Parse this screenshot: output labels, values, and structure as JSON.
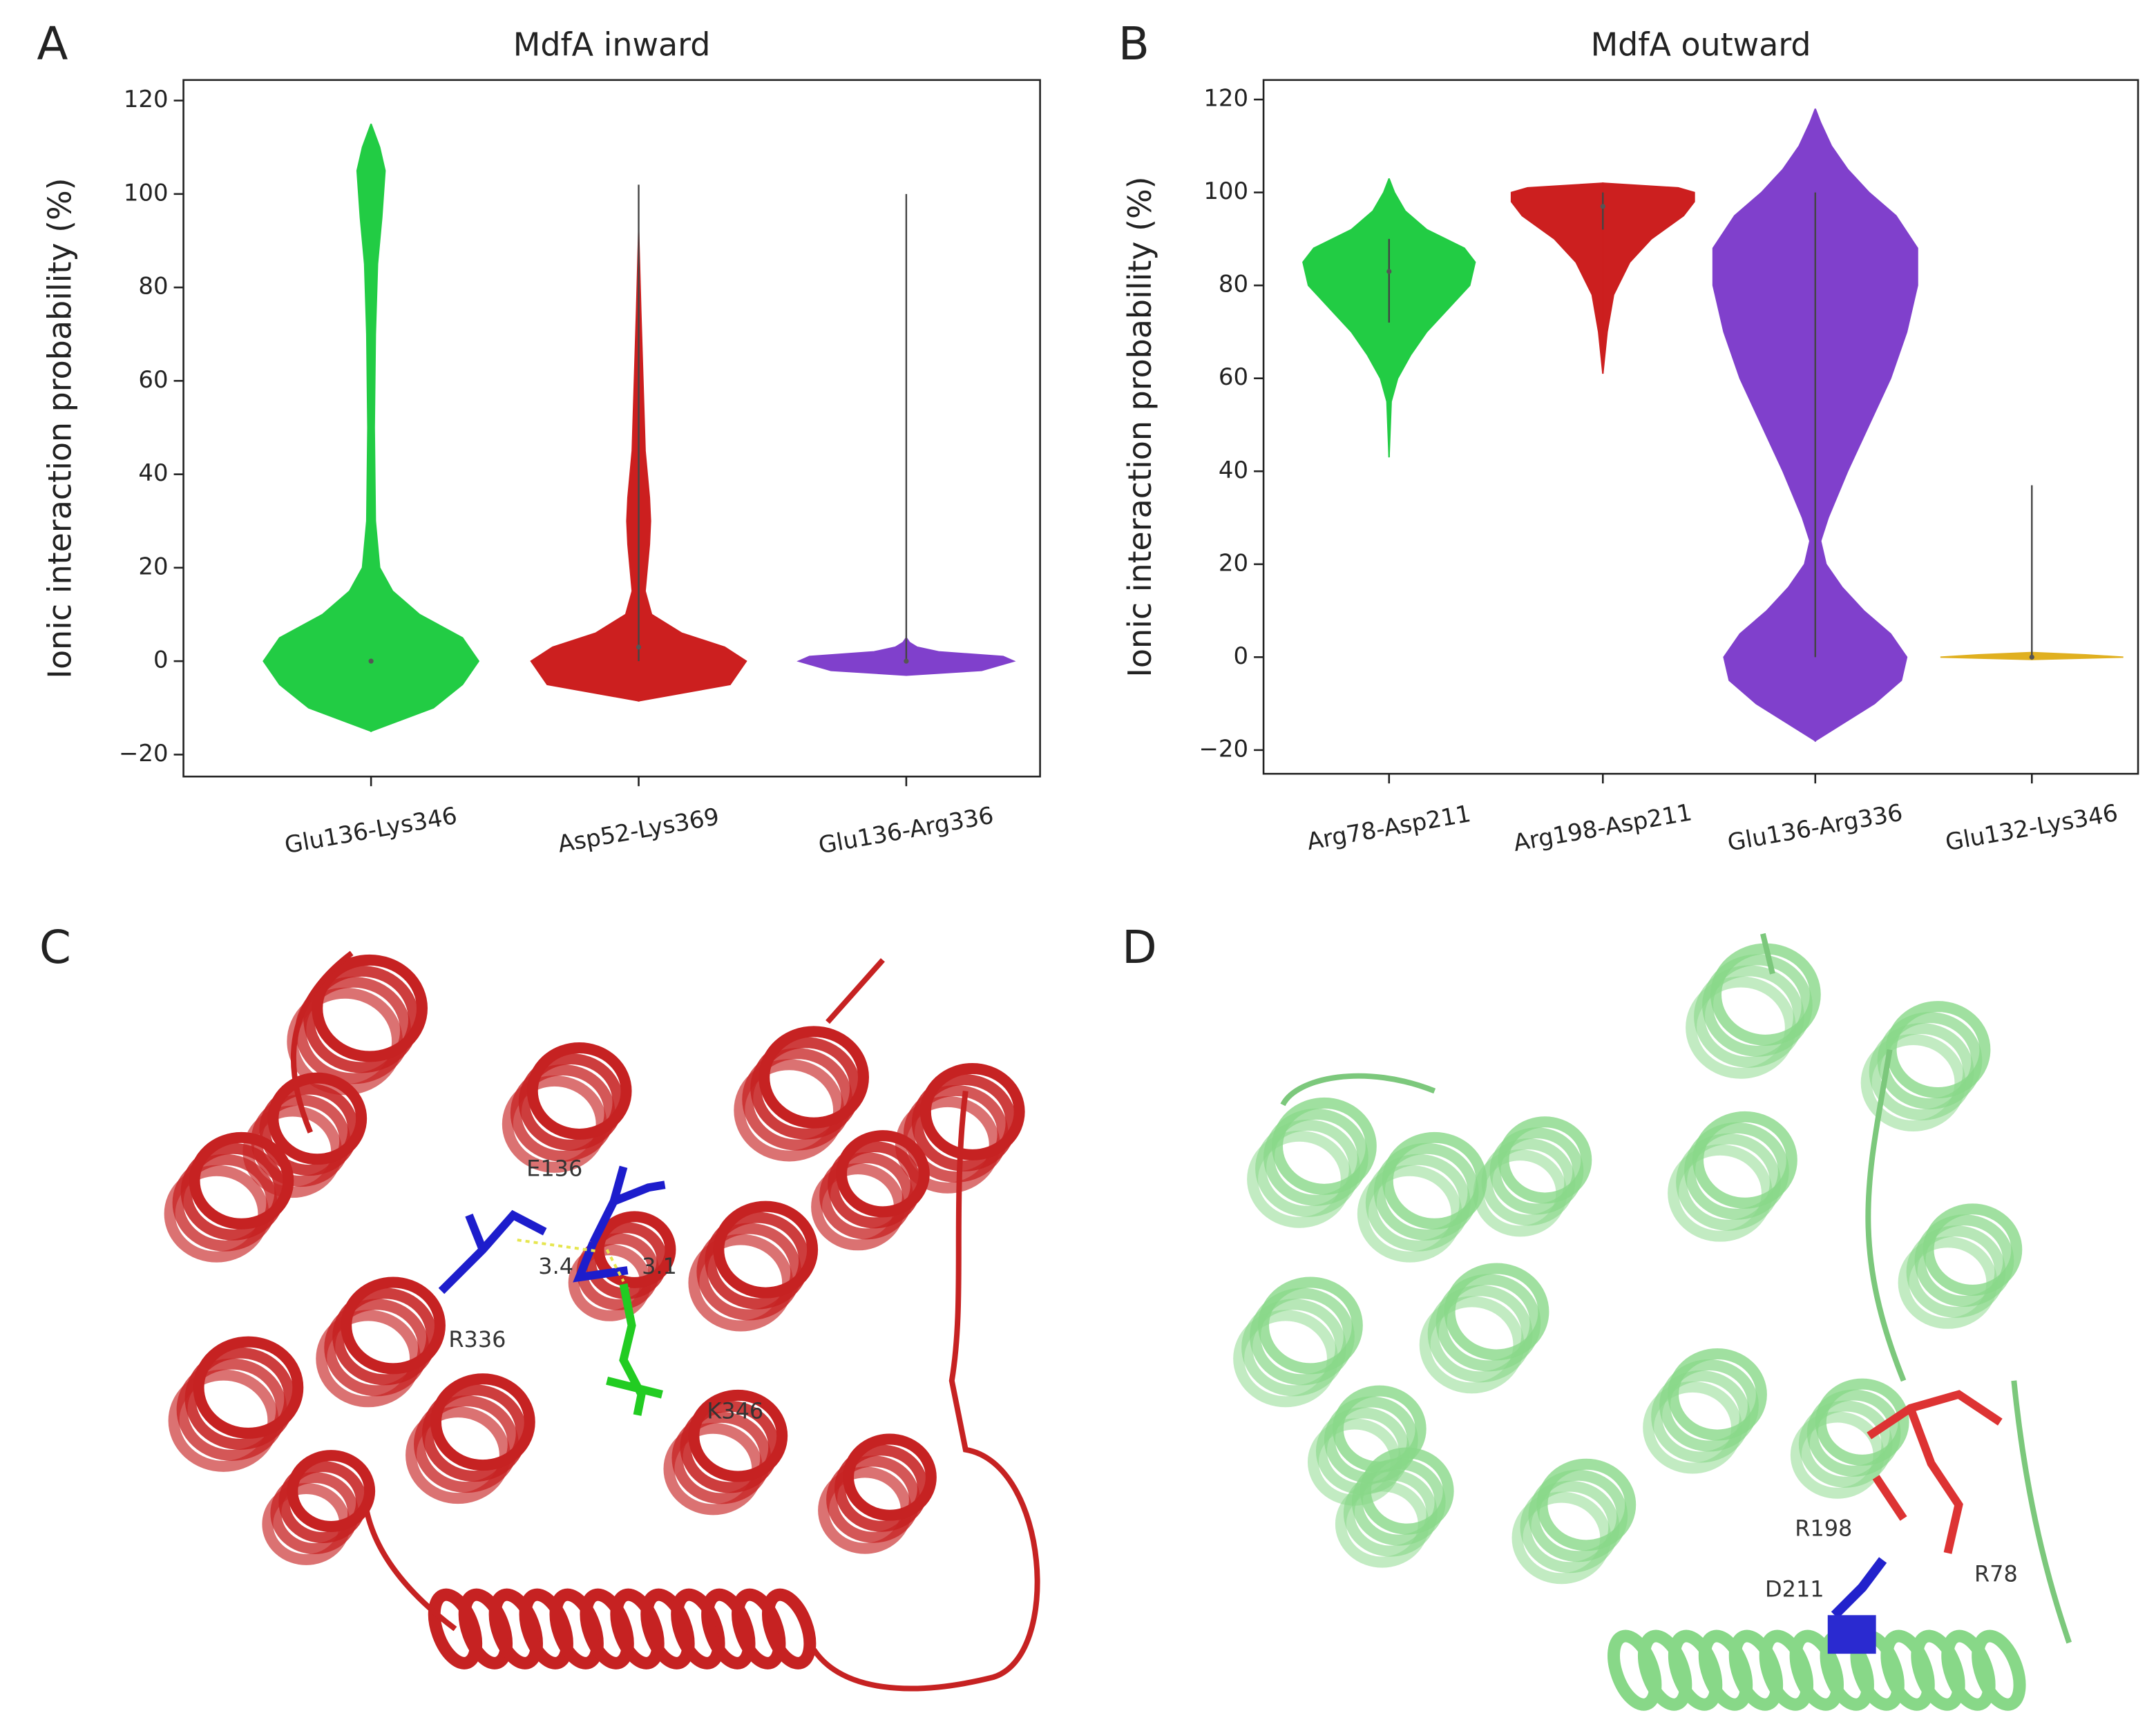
{
  "chart_data": [
    {
      "type": "violin",
      "panel": "A",
      "title": "MdfA inward",
      "y_label": "Ionic interaction probability (%)",
      "categories": [
        "Glu136-Lys346",
        "Asp52-Lys369",
        "Glu136-Arg336"
      ],
      "series": [
        {
          "color": "#22cc44",
          "y": [
            -15,
            -10,
            -5,
            0,
            5,
            10,
            15,
            20,
            30,
            50,
            70,
            85,
            95,
            105,
            110,
            115
          ],
          "density": [
            0,
            0.58,
            0.85,
            1.0,
            0.85,
            0.45,
            0.2,
            0.08,
            0.04,
            0.03,
            0.04,
            0.06,
            0.1,
            0.13,
            0.08,
            0
          ],
          "median": 0
        },
        {
          "color": "#cc1f1f",
          "y": [
            -8.5,
            -5,
            0,
            3,
            6,
            10,
            15,
            20,
            25,
            30,
            35,
            45,
            60,
            75,
            92
          ],
          "density": [
            0,
            0.85,
            1.0,
            0.8,
            0.4,
            0.12,
            0.06,
            0.08,
            0.1,
            0.11,
            0.1,
            0.06,
            0.04,
            0.02,
            0
          ],
          "range": [
            0,
            102
          ],
          "median": 3
        },
        {
          "color": "#8040cc",
          "y": [
            -3,
            -2,
            0,
            1,
            2,
            3,
            4,
            5
          ],
          "density": [
            0,
            0.7,
            1.0,
            0.9,
            0.3,
            0.1,
            0.03,
            0
          ],
          "range": [
            0,
            100
          ],
          "median": 0
        }
      ],
      "ylim": [
        -24.7,
        124.4
      ],
      "yticks": [
        {
          "value": -20,
          "label": "−20"
        },
        0,
        20,
        40,
        60,
        80,
        100,
        120
      ]
    },
    {
      "type": "violin",
      "panel": "B",
      "title": "MdfA outward",
      "y_label": "Ionic interaction probability (%)",
      "categories": [
        "Arg78-Asp211",
        "Arg198-Asp211",
        "Glu136-Arg336",
        "Glu132-Lys346"
      ],
      "series": [
        {
          "color": "#22cc44",
          "y": [
            43,
            55,
            60,
            65,
            70,
            75,
            80,
            85,
            88,
            92,
            96,
            100,
            103
          ],
          "density": [
            0,
            0.02,
            0.08,
            0.2,
            0.35,
            0.55,
            0.75,
            0.8,
            0.7,
            0.35,
            0.15,
            0.05,
            0
          ],
          "range": [
            72,
            90
          ],
          "median": 83
        },
        {
          "color": "#cc1f1f",
          "y": [
            61,
            70,
            78,
            85,
            90,
            95,
            98,
            100,
            101,
            102
          ],
          "density": [
            0,
            0.04,
            0.1,
            0.25,
            0.45,
            0.75,
            0.85,
            0.85,
            0.7,
            0
          ],
          "range": [
            92,
            100
          ],
          "median": 97
        },
        {
          "color": "#8040cc",
          "y": [
            -18,
            -10,
            -5,
            0,
            5,
            10,
            15,
            20,
            25,
            30,
            40,
            50,
            60,
            70,
            80,
            88,
            95,
            100,
            105,
            110,
            115,
            118
          ],
          "density": [
            0,
            0.55,
            0.8,
            0.85,
            0.7,
            0.45,
            0.25,
            0.1,
            0.05,
            0.12,
            0.3,
            0.5,
            0.7,
            0.85,
            0.95,
            0.95,
            0.75,
            0.5,
            0.3,
            0.15,
            0.05,
            0
          ],
          "range": [
            0,
            100
          ]
        },
        {
          "color": "#e0b020",
          "y": [
            -0.5,
            0,
            0.5,
            1
          ],
          "density": [
            0,
            0.85,
            0.5,
            0
          ],
          "range": [
            0,
            37
          ],
          "median": 0
        }
      ],
      "ylim": [
        -25.1,
        124.2
      ],
      "yticks": [
        {
          "value": -20,
          "label": "−20"
        },
        0,
        20,
        40,
        60,
        80,
        100,
        120
      ]
    }
  ],
  "panel_c": {
    "letter": "C",
    "labels": [
      "E136",
      "3.4",
      "3.1",
      "R336",
      "K346"
    ]
  },
  "panel_d": {
    "letter": "D",
    "labels": [
      "R198",
      "R78",
      "D211"
    ]
  }
}
